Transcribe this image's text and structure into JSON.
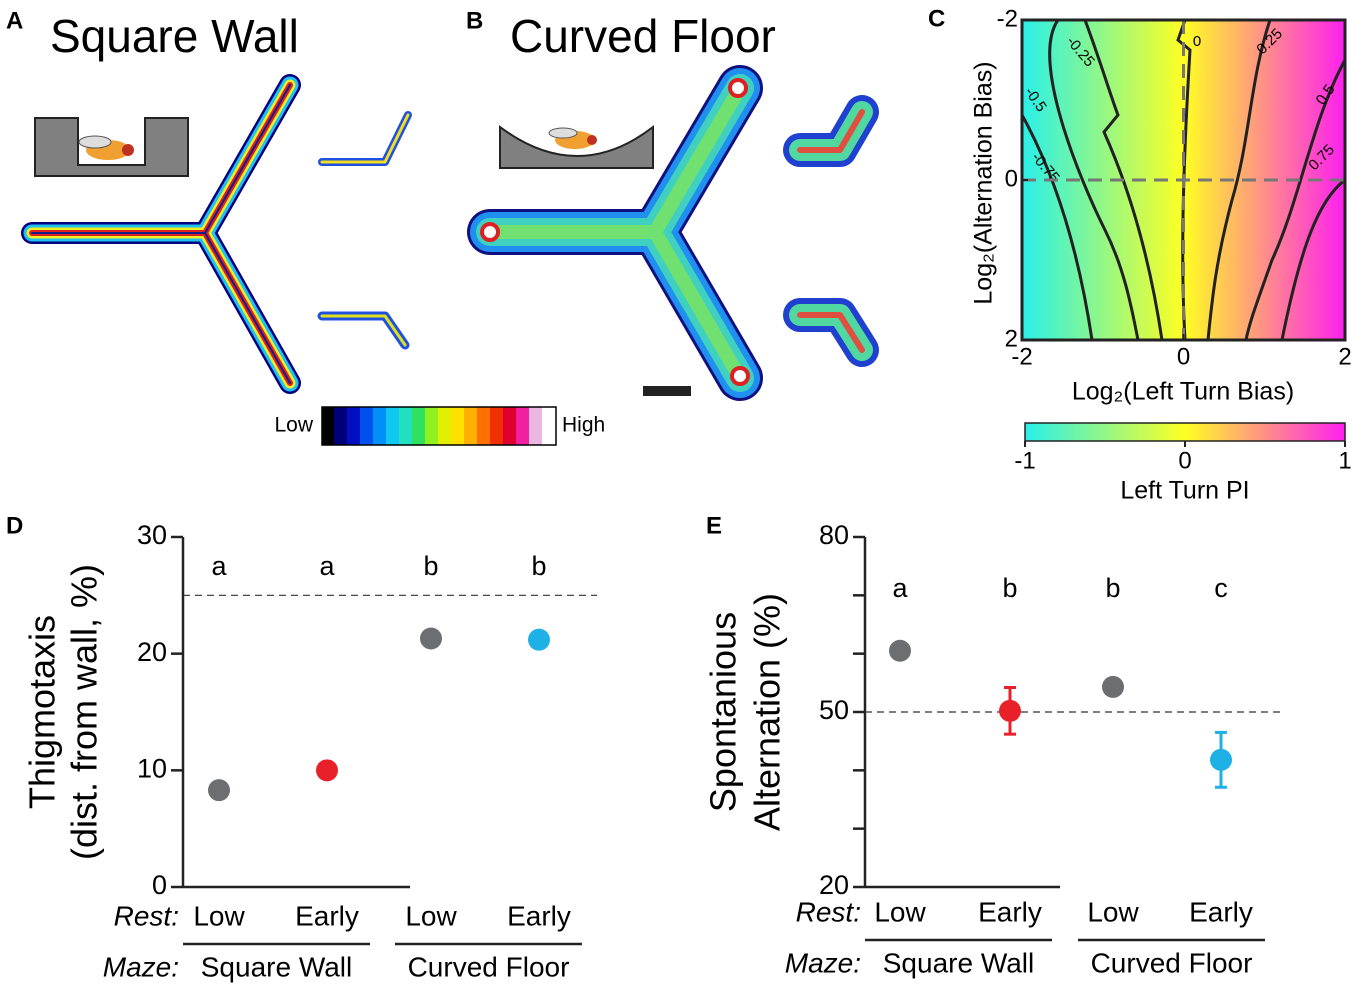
{
  "panels": {
    "a": {
      "letter": "A",
      "title": "Square Wall"
    },
    "b": {
      "letter": "B",
      "title": "Curved Floor"
    },
    "density_scale": {
      "low": "Low",
      "high": "High"
    }
  },
  "chart_data": [
    {
      "type": "contour",
      "panel": "C",
      "xlabel": "Log₂(Left Turn Bias)",
      "ylabel": "Log₂(Alternation Bias)",
      "xlim": [
        -2,
        2
      ],
      "ylim": [
        2,
        -2
      ],
      "xticks": [
        -2,
        0,
        2
      ],
      "yticks": [
        -2,
        0,
        2
      ],
      "vlines": [
        0
      ],
      "hlines": [
        0
      ],
      "contour_levels": [
        -0.75,
        -0.5,
        -0.25,
        0,
        0.25,
        0.5,
        0.75
      ],
      "colorbar": {
        "label": "Left Turn PI",
        "lim": [
          -1,
          1
        ],
        "ticks": [
          -1,
          0,
          1
        ]
      }
    },
    {
      "type": "dot",
      "panel": "D",
      "ylabel": [
        "Thigmotaxis",
        "(dist. from wall, %)"
      ],
      "ylim": [
        0,
        30
      ],
      "yticks": [
        0,
        10,
        20,
        30
      ],
      "hline": 25,
      "categories": [
        "Low",
        "Early",
        "Low",
        "Early"
      ],
      "row_labels": [
        "Rest:",
        "Maze:"
      ],
      "groups": [
        "Square Wall",
        "Curved Floor"
      ],
      "values": [
        8.3,
        10,
        21.3,
        21.2
      ],
      "colors": [
        "#6d6e71",
        "#e8202a",
        "#6d6e71",
        "#1fb0e6"
      ],
      "letters": [
        "a",
        "a",
        "b",
        "b"
      ]
    },
    {
      "type": "dot",
      "panel": "E",
      "ylabel": [
        "Spontanious",
        "Alternation (%)"
      ],
      "ylim": [
        20,
        80
      ],
      "yticks": [
        20,
        50,
        80
      ],
      "minor_yticks": [
        30,
        40,
        60,
        70
      ],
      "hline": 50,
      "categories": [
        "Low",
        "Early",
        "Low",
        "Early"
      ],
      "row_labels": [
        "Rest:",
        "Maze:"
      ],
      "groups": [
        "Square Wall",
        "Curved Floor"
      ],
      "values": [
        60.5,
        50.2,
        54.3,
        41.8
      ],
      "errors": [
        null,
        4,
        null,
        4.7
      ],
      "colors": [
        "#6d6e71",
        "#e8202a",
        "#6d6e71",
        "#1fb0e6"
      ],
      "letters": [
        "a",
        "b",
        "b",
        "c"
      ]
    }
  ]
}
